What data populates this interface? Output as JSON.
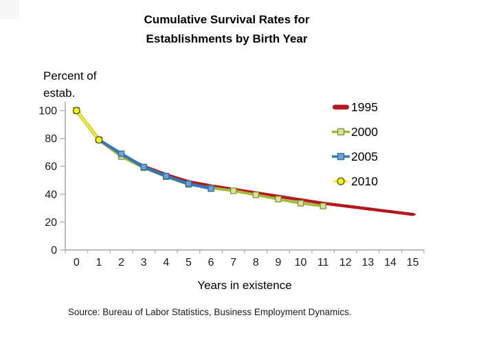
{
  "title": {
    "line1": "Cumulative Survival Rates for",
    "line2": "Establishments by Birth Year"
  },
  "y_axis_title": {
    "line1": "Percent of",
    "line2": "estab."
  },
  "x_axis_title": "Years in existence",
  "source": "Source: Bureau of Labor Statistics, Business Employment Dynamics.",
  "chart_data": {
    "type": "line",
    "title": "Cumulative Survival Rates for Establishments by Birth Year",
    "xlabel": "Years in existence",
    "ylabel": "Percent of estab.",
    "x": [
      0,
      1,
      2,
      3,
      4,
      5,
      6,
      7,
      8,
      9,
      10,
      11,
      12,
      13,
      14,
      15
    ],
    "xticks": [
      "0",
      "1",
      "2",
      "3",
      "4",
      "5",
      "6",
      "7",
      "8",
      "9",
      "10",
      "11",
      "12",
      "13",
      "14",
      "15"
    ],
    "yticks": [
      "0",
      "20",
      "40",
      "60",
      "80",
      "100"
    ],
    "ytick_values": [
      0,
      20,
      40,
      60,
      80,
      100
    ],
    "ylim": [
      0,
      100
    ],
    "grid": false,
    "legend_position": "right",
    "axis_color": "#a6a6a6",
    "tick_label_color": "#1a1a1a",
    "series": [
      {
        "name": "1995",
        "color": "#b4191d",
        "marker": "dash",
        "marker_fill": "#9e1418",
        "marker_stroke": "#9e1418",
        "values": [
          100,
          79,
          68,
          60,
          54,
          49,
          46,
          43.5,
          41,
          38.5,
          36,
          33.5,
          31.5,
          29.5,
          27.5,
          25.5
        ]
      },
      {
        "name": "2000",
        "color": "#9fba3c",
        "marker": "square",
        "marker_fill": "#d9e3a3",
        "marker_stroke": "#87982f",
        "values": [
          100,
          79,
          67,
          59,
          52.5,
          47,
          44.5,
          42.5,
          39.5,
          36.5,
          33.5,
          31.5
        ]
      },
      {
        "name": "2005",
        "color": "#3577b5",
        "marker": "square",
        "marker_fill": "#6fa0d6",
        "marker_stroke": "#2f6da8",
        "values": [
          100,
          79,
          69,
          59.5,
          53,
          47.5,
          44
        ]
      },
      {
        "name": "2010",
        "color": "#ffee00",
        "marker": "circle",
        "marker_fill": "#ffff00",
        "marker_stroke": "#5f5f28",
        "values": [
          100,
          79
        ]
      }
    ]
  }
}
